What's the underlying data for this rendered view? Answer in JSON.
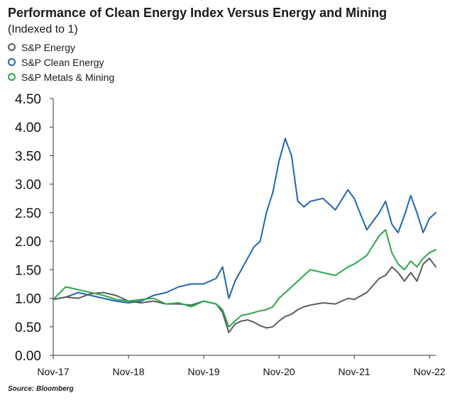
{
  "title": "Performance of Clean Energy Index Versus Energy and Mining",
  "subtitle": "(Indexed to 1)",
  "source": "Source: Bloomberg",
  "chart_data": {
    "type": "line",
    "title": "Performance of Clean Energy Index Versus Energy and Mining",
    "subtitle": "(Indexed to 1)",
    "xlabel": "",
    "ylabel": "",
    "ylim": [
      0,
      4.5
    ],
    "yticks": [
      "0.00",
      "0.50",
      "1.00",
      "1.50",
      "2.00",
      "2.50",
      "3.00",
      "3.50",
      "4.00",
      "4.50"
    ],
    "xticks": [
      "Nov-17",
      "Nov-18",
      "Nov-19",
      "Nov-20",
      "Nov-21",
      "Nov-22"
    ],
    "xlim": [
      "2017-11",
      "2022-12"
    ],
    "grid": false,
    "legend_position": "top-left",
    "x": [
      "2017-11",
      "2018-01",
      "2018-03",
      "2018-05",
      "2018-07",
      "2018-09",
      "2018-11",
      "2019-01",
      "2019-03",
      "2019-05",
      "2019-07",
      "2019-09",
      "2019-11",
      "2020-01",
      "2020-02",
      "2020-03",
      "2020-04",
      "2020-05",
      "2020-06",
      "2020-07",
      "2020-08",
      "2020-09",
      "2020-10",
      "2020-11",
      "2020-12",
      "2021-01",
      "2021-02",
      "2021-03",
      "2021-04",
      "2021-06",
      "2021-08",
      "2021-10",
      "2021-11",
      "2022-01",
      "2022-03",
      "2022-04",
      "2022-05",
      "2022-06",
      "2022-07",
      "2022-08",
      "2022-09",
      "2022-10",
      "2022-11",
      "2022-12"
    ],
    "series": [
      {
        "name": "S&P Energy",
        "color": "#5b5b5b",
        "values": [
          0.98,
          1.02,
          1.0,
          1.08,
          1.1,
          1.05,
          0.95,
          0.92,
          0.95,
          0.9,
          0.9,
          0.88,
          0.95,
          0.9,
          0.75,
          0.4,
          0.55,
          0.6,
          0.62,
          0.58,
          0.52,
          0.48,
          0.5,
          0.6,
          0.68,
          0.72,
          0.8,
          0.85,
          0.88,
          0.92,
          0.9,
          1.0,
          0.98,
          1.1,
          1.35,
          1.4,
          1.55,
          1.45,
          1.3,
          1.45,
          1.3,
          1.6,
          1.7,
          1.55
        ]
      },
      {
        "name": "S&P Clean Energy",
        "color": "#1f66b1",
        "values": [
          0.98,
          1.02,
          1.1,
          1.05,
          1.0,
          0.95,
          0.92,
          0.95,
          1.05,
          1.1,
          1.2,
          1.25,
          1.25,
          1.35,
          1.55,
          1.0,
          1.3,
          1.5,
          1.7,
          1.9,
          2.0,
          2.5,
          2.85,
          3.4,
          3.8,
          3.5,
          2.7,
          2.6,
          2.7,
          2.75,
          2.55,
          2.9,
          2.75,
          2.2,
          2.5,
          2.7,
          2.3,
          2.15,
          2.45,
          2.8,
          2.5,
          2.15,
          2.4,
          2.5
        ]
      },
      {
        "name": "S&P Metals & Mining",
        "color": "#2ca84b",
        "values": [
          0.98,
          1.2,
          1.15,
          1.1,
          1.05,
          0.98,
          0.95,
          0.98,
          1.0,
          0.9,
          0.92,
          0.85,
          0.95,
          0.9,
          0.8,
          0.5,
          0.6,
          0.7,
          0.72,
          0.75,
          0.78,
          0.8,
          0.85,
          1.0,
          1.1,
          1.2,
          1.3,
          1.4,
          1.5,
          1.45,
          1.4,
          1.55,
          1.6,
          1.75,
          2.1,
          2.2,
          1.8,
          1.6,
          1.5,
          1.65,
          1.55,
          1.7,
          1.8,
          1.85
        ]
      }
    ]
  }
}
